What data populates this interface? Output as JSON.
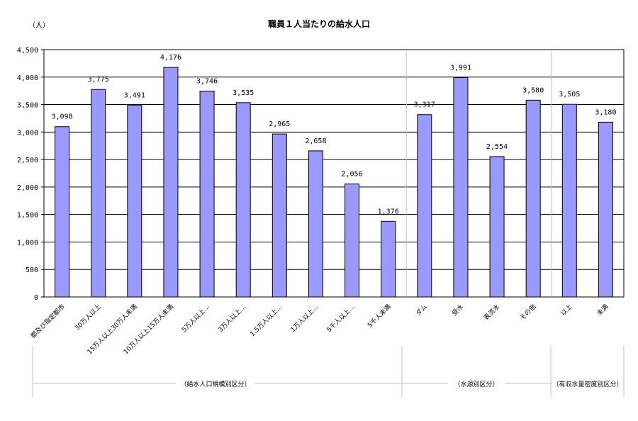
{
  "chart_data": {
    "type": "bar",
    "title": "職員１人当たりの給水人口",
    "unit_label": "（人）",
    "ylim": [
      0,
      4500
    ],
    "ytick_step": 500,
    "ytick_labels": [
      "0",
      "500",
      "1,000",
      "1,500",
      "2,000",
      "2,500",
      "3,000",
      "3,500",
      "4,000",
      "4,500"
    ],
    "grid": true,
    "categories": [
      "都及び指定都市",
      "30万人以上",
      "15万人以上30万人未満",
      "10万人以上15万人未満",
      "5万人以上…",
      "3万人以上…",
      "1.5万人以上…",
      "1万人以上…",
      "5千人以上…",
      "5千人未満",
      "ダム",
      "受水",
      "表流水",
      "その他",
      "以上",
      "未満"
    ],
    "values": [
      3098,
      3775,
      3491,
      4176,
      3746,
      3535,
      2965,
      2658,
      2056,
      1376,
      3317,
      3991,
      2554,
      3580,
      3505,
      3180
    ],
    "value_labels": [
      "3,098",
      "3,775",
      "3,491",
      "4,176",
      "3,746",
      "3,535",
      "2,965",
      "2,658",
      "2,056",
      "1,376",
      "3,317",
      "3,991",
      "2,554",
      "3,580",
      "3,505",
      "3,180"
    ],
    "groups": [
      {
        "label": "（給水人口規模別区分）",
        "from": 0,
        "to": 9
      },
      {
        "label": "（水源別区分）",
        "from": 10,
        "to": 13
      },
      {
        "label": "（有収水量密度別区分）",
        "from": 14,
        "to": 15
      }
    ],
    "colors": {
      "bar_fill": "#9999ff",
      "bar_stroke": "#000000",
      "grid": "#000000",
      "separator": "#c0c0c0"
    }
  }
}
